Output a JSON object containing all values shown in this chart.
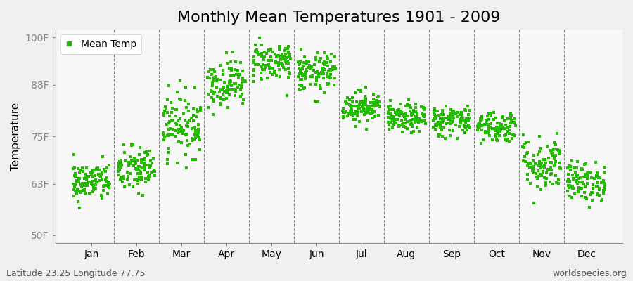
{
  "title": "Monthly Mean Temperatures 1901 - 2009",
  "ylabel": "Temperature",
  "yticks": [
    50,
    63,
    75,
    88,
    100
  ],
  "ytick_labels": [
    "50F",
    "63F",
    "75F",
    "88F",
    "100F"
  ],
  "ylim": [
    48,
    102
  ],
  "xlim": [
    -0.3,
    12.3
  ],
  "month_labels": [
    "Jan",
    "Feb",
    "Mar",
    "Apr",
    "May",
    "Jun",
    "Jul",
    "Aug",
    "Sep",
    "Oct",
    "Nov",
    "Dec"
  ],
  "month_centers": [
    0.5,
    1.5,
    2.5,
    3.5,
    4.5,
    5.5,
    6.5,
    7.5,
    8.5,
    9.5,
    10.5,
    11.5
  ],
  "dot_color": "#22bb00",
  "plot_bg_color": "#f0f0f0",
  "fig_bg_color": "#f0f0f0",
  "legend_label": "Mean Temp",
  "footer_left": "Latitude 23.25 Longitude 77.75",
  "footer_right": "worldspecies.org",
  "monthly_mean_F": [
    63.5,
    66.5,
    78.0,
    88.5,
    94.0,
    91.0,
    82.5,
    79.5,
    79.0,
    77.5,
    68.0,
    63.5
  ],
  "monthly_std_F": [
    2.5,
    3.0,
    4.0,
    3.0,
    2.5,
    2.5,
    2.0,
    1.8,
    2.0,
    2.0,
    3.5,
    2.5
  ],
  "n_years": 109,
  "title_fontsize": 16,
  "axis_fontsize": 11,
  "tick_fontsize": 10,
  "footer_fontsize": 9
}
